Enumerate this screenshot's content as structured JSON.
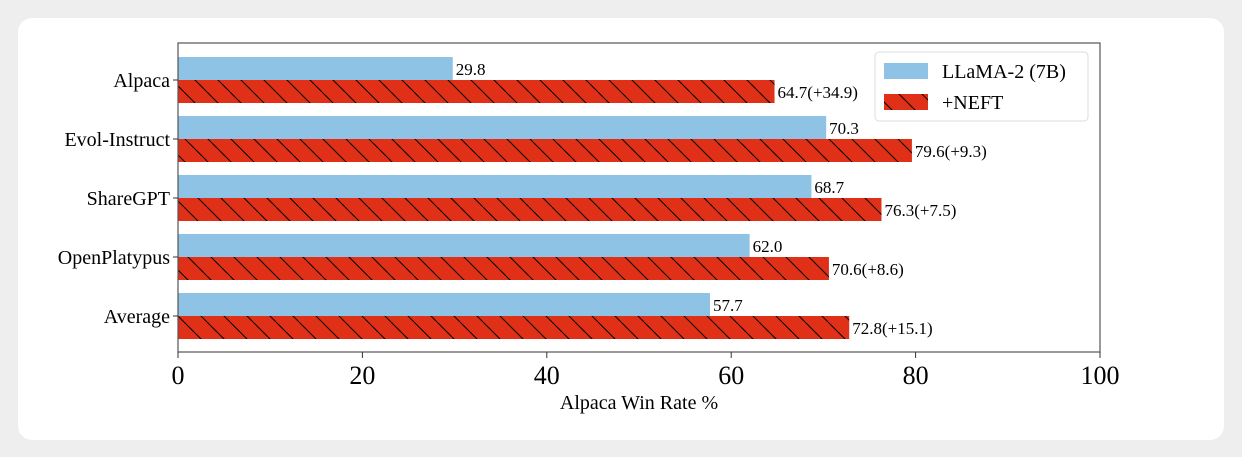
{
  "chart_data": {
    "type": "bar",
    "orientation": "horizontal",
    "categories": [
      "Alpaca",
      "Evol-Instruct",
      "ShareGPT",
      "OpenPlatypus",
      "Average"
    ],
    "series": [
      {
        "name": "LLaMA-2 (7B)",
        "values": [
          29.8,
          70.3,
          68.7,
          62.0,
          57.7
        ],
        "labels": [
          "29.8",
          "70.3",
          "68.7",
          "62.0",
          "57.7"
        ],
        "color": "#8fc3e6",
        "hatch": "none"
      },
      {
        "name": "+NEFT",
        "values": [
          64.7,
          79.6,
          76.3,
          70.6,
          72.8
        ],
        "labels": [
          "64.7(+34.9)",
          "79.6(+9.3)",
          "76.3(+7.5)",
          "70.6(+8.6)",
          "72.8(+15.1)"
        ],
        "color": "#e03118",
        "hatch": "backslash"
      }
    ],
    "xlabel": "Alpaca Win Rate %",
    "ylabel": "",
    "xlim": [
      0,
      100
    ],
    "xticks": [
      "0",
      "20",
      "40",
      "60",
      "80",
      "100"
    ],
    "grid": false,
    "legend": "top-right"
  }
}
